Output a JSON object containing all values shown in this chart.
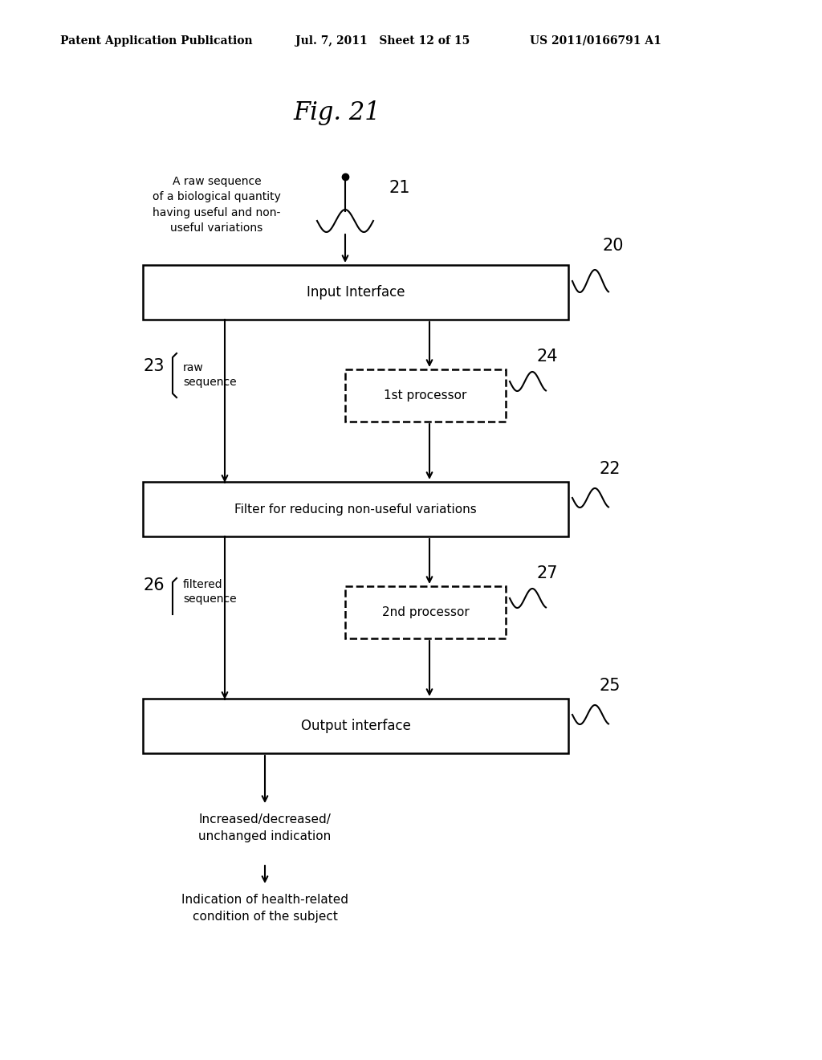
{
  "title": "Fig. 21",
  "header_left": "Patent Application Publication",
  "header_mid": "Jul. 7, 2011   Sheet 12 of 15",
  "header_right": "US 2011/0166791 A1",
  "bg_color": "#ffffff",
  "text_color": "#000000",
  "inp_label": "Input Interface",
  "flt_label": "Filter for reducing non-useful variations",
  "p1_label": "1st processor",
  "out_label": "Output interface",
  "p2_label": "2nd processor",
  "label_21": "21",
  "label_20": "20",
  "label_23": "23",
  "label_24": "24",
  "label_22": "22",
  "label_26": "26",
  "label_27": "27",
  "label_25": "25",
  "raw_seq_text": "A raw sequence\nof a biological quantity\nhaving useful and non-\nuseful variations",
  "raw_label": "raw\nsequence",
  "filtered_label": "filtered\nsequence",
  "increased_text": "Increased/decreased/\nunchanged indication",
  "health_text": "Indication of health-related\ncondition of the subject"
}
